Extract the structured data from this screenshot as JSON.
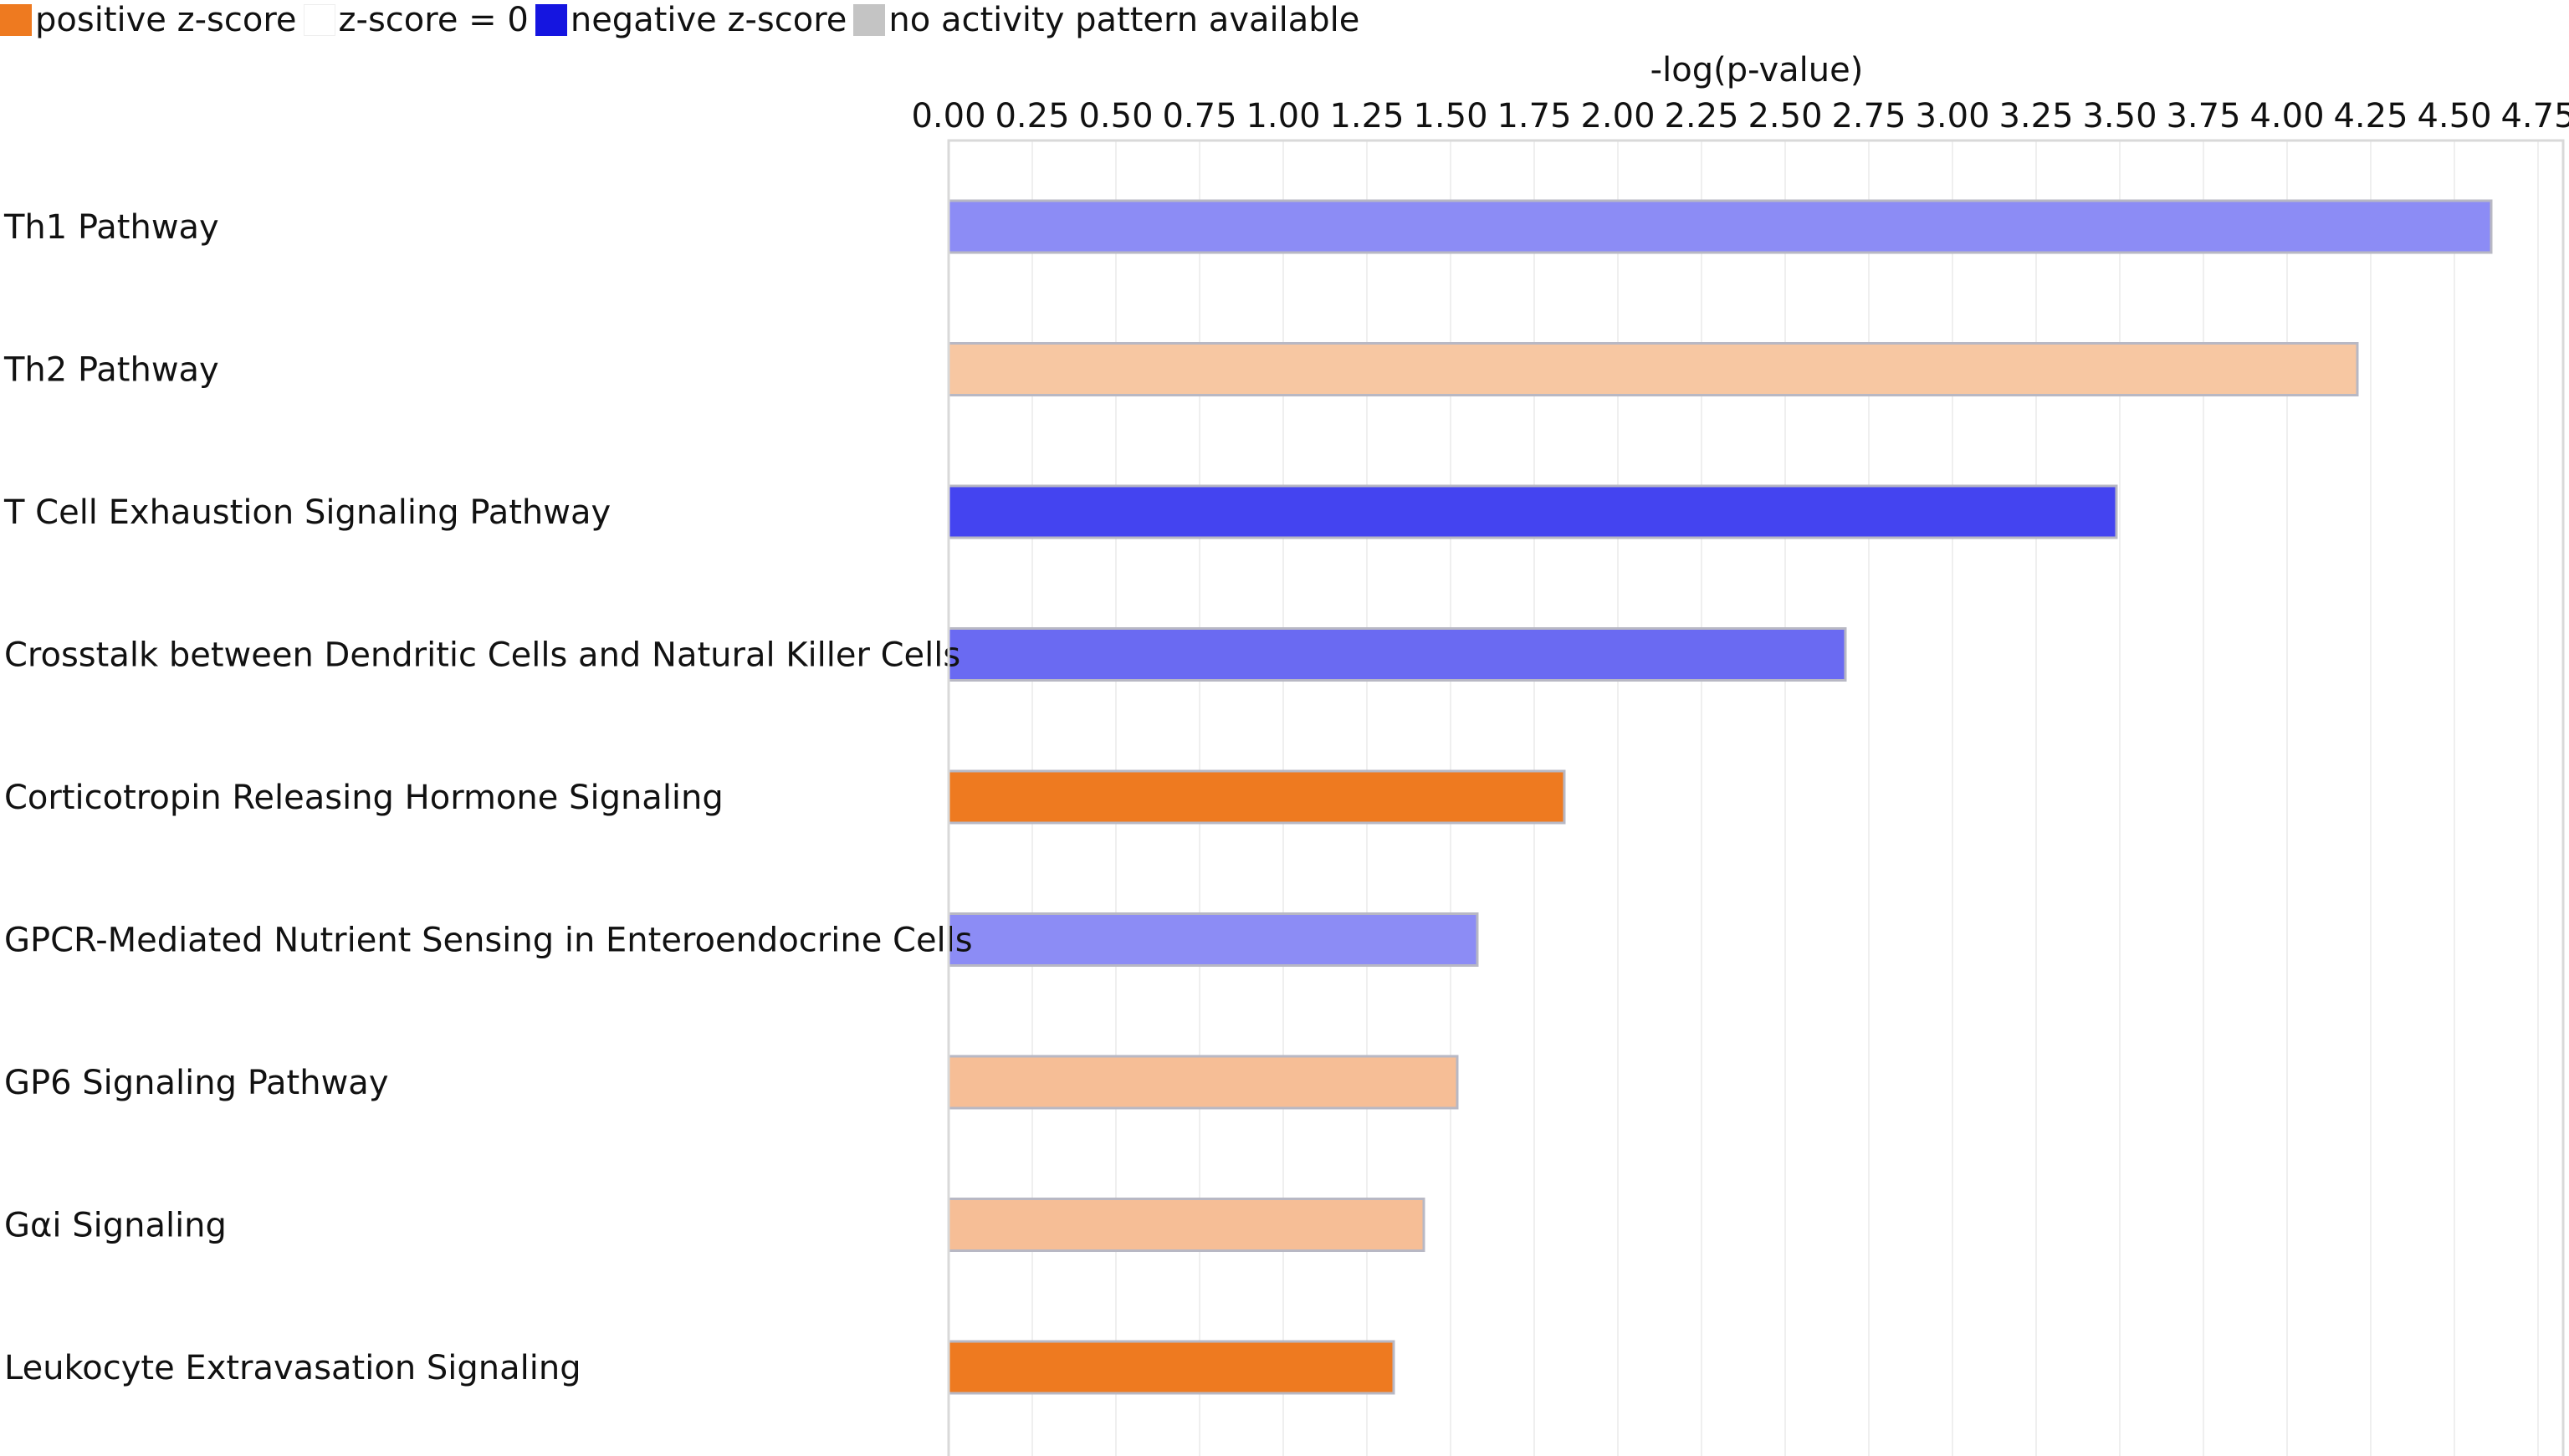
{
  "legend": {
    "items": [
      {
        "label": "positive z-score",
        "color": "#ee7a20"
      },
      {
        "label": "z-score = 0",
        "color": "#ffffff"
      },
      {
        "label": "negative z-score",
        "color": "#1515e0"
      },
      {
        "label": "no activity pattern available",
        "color": "#c4c4c4"
      }
    ]
  },
  "chart_data": {
    "type": "bar",
    "orientation": "horizontal",
    "title": "",
    "xlabel": "-log(p-value)",
    "ylabel": "",
    "xlim": [
      0,
      4.75
    ],
    "tick_labels": [
      "0.00",
      "0.25",
      "0.50",
      "0.75",
      "1.00",
      "1.25",
      "1.50",
      "1.75",
      "2.00",
      "2.25",
      "2.50",
      "2.75",
      "3.00",
      "3.25",
      "3.50",
      "3.75",
      "4.00",
      "4.25",
      "4.50",
      "4.75"
    ],
    "grid": true,
    "categories": [
      "Th1 Pathway",
      "Th2 Pathway",
      "T Cell Exhaustion Signaling Pathway",
      "Crosstalk between Dendritic Cells and Natural Killer Cells",
      "Corticotropin Releasing Hormone Signaling",
      "GPCR-Mediated Nutrient Sensing in Enteroendocrine Cells",
      "GP6 Signaling Pathway",
      "Gαi Signaling",
      "Leukocyte Extravasation Signaling"
    ],
    "values": [
      4.61,
      4.21,
      3.49,
      2.68,
      1.84,
      1.58,
      1.52,
      1.42,
      1.33
    ],
    "colors": [
      "#8c8cf5",
      "#f7c7a2",
      "#4444f0",
      "#6a6af2",
      "#ee7a20",
      "#8c8cf5",
      "#f6be96",
      "#f6be96",
      "#ee7a20"
    ]
  }
}
